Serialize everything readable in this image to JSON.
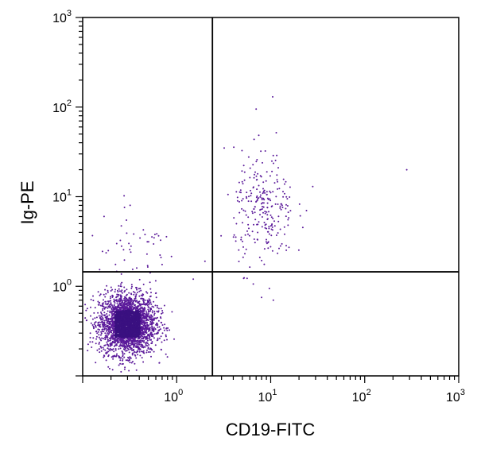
{
  "chart_data": {
    "type": "scatter",
    "title": "",
    "xlabel": "CD19-FITC",
    "ylabel": "Ig-PE",
    "x_scale": "log",
    "y_scale": "log",
    "xlim": [
      0.1,
      1000
    ],
    "ylim": [
      0.1,
      1000
    ],
    "x_ticks": [
      {
        "base": "10",
        "exp": "0",
        "value": 1
      },
      {
        "base": "10",
        "exp": "1",
        "value": 10
      },
      {
        "base": "10",
        "exp": "2",
        "value": 100
      },
      {
        "base": "10",
        "exp": "3",
        "value": 1000
      }
    ],
    "y_ticks": [
      {
        "base": "10",
        "exp": "0",
        "value": 1
      },
      {
        "base": "10",
        "exp": "1",
        "value": 10
      },
      {
        "base": "10",
        "exp": "2",
        "value": 100
      },
      {
        "base": "10",
        "exp": "3",
        "value": 1000
      }
    ],
    "quadrant_gates": {
      "x": 2.4,
      "y": 1.45
    },
    "point_color": "#5b1a9a",
    "core_color": "#3a1080",
    "populations": [
      {
        "center_x": 0.3,
        "center_y": 0.38,
        "spread_x_log": 0.15,
        "spread_y_log": 0.17,
        "count": 2600
      },
      {
        "center_x": 8.5,
        "center_y": 7.0,
        "spread_x_log": 0.16,
        "spread_y_log": 0.32,
        "count": 260
      },
      {
        "center_x": 0.35,
        "center_y": 2.6,
        "spread_x_log": 0.25,
        "spread_y_log": 0.18,
        "count": 45
      }
    ],
    "outliers": [
      {
        "x": 280,
        "y": 20
      },
      {
        "x": 28,
        "y": 13
      },
      {
        "x": 24,
        "y": 7
      },
      {
        "x": 10.5,
        "y": 130
      },
      {
        "x": 7,
        "y": 95
      },
      {
        "x": 3.2,
        "y": 35
      },
      {
        "x": 8,
        "y": 0.75
      },
      {
        "x": 0.32,
        "y": 8
      },
      {
        "x": 2.0,
        "y": 1.9
      },
      {
        "x": 1.5,
        "y": 1.2
      }
    ]
  }
}
